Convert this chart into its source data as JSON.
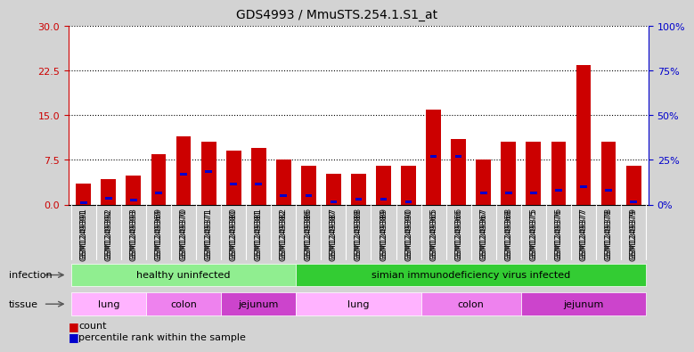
{
  "title": "GDS4993 / MmuSTS.254.1.S1_at",
  "samples": [
    "GSM1249391",
    "GSM1249392",
    "GSM1249393",
    "GSM1249369",
    "GSM1249370",
    "GSM1249371",
    "GSM1249380",
    "GSM1249381",
    "GSM1249382",
    "GSM1249386",
    "GSM1249387",
    "GSM1249388",
    "GSM1249389",
    "GSM1249390",
    "GSM1249365",
    "GSM1249366",
    "GSM1249367",
    "GSM1249368",
    "GSM1249375",
    "GSM1249376",
    "GSM1249377",
    "GSM1249378",
    "GSM1249379"
  ],
  "red_values": [
    3.5,
    4.2,
    4.8,
    8.5,
    11.5,
    10.5,
    9.0,
    9.5,
    7.5,
    6.5,
    5.2,
    5.2,
    6.5,
    6.5,
    16.0,
    11.0,
    7.5,
    10.5,
    10.5,
    10.5,
    23.5,
    10.5,
    6.5
  ],
  "blue_percentile": [
    1.0,
    3.5,
    2.5,
    6.5,
    17.0,
    18.5,
    11.5,
    11.5,
    5.0,
    5.0,
    1.5,
    3.0,
    3.0,
    1.5,
    27.0,
    27.0,
    6.5,
    6.5,
    6.5,
    8.0,
    10.0,
    8.0,
    1.5
  ],
  "ylim_left": [
    0,
    30
  ],
  "ylim_right": [
    0,
    100
  ],
  "yticks_left": [
    0,
    7.5,
    15,
    22.5,
    30
  ],
  "yticks_right": [
    0,
    25,
    50,
    75,
    100
  ],
  "infection_groups": [
    {
      "label": "healthy uninfected",
      "start": 0,
      "end": 8,
      "color": "#90EE90"
    },
    {
      "label": "simian immunodeficiency virus infected",
      "start": 9,
      "end": 22,
      "color": "#33CC33"
    }
  ],
  "tissue_colors": {
    "lung": "#FFB3FF",
    "colon": "#EE82EE",
    "jejunum": "#CC44CC"
  },
  "tissue_groups": [
    {
      "label": "lung",
      "start": 0,
      "end": 2
    },
    {
      "label": "colon",
      "start": 3,
      "end": 5
    },
    {
      "label": "jejunum",
      "start": 6,
      "end": 8
    },
    {
      "label": "lung",
      "start": 9,
      "end": 13
    },
    {
      "label": "colon",
      "start": 14,
      "end": 17
    },
    {
      "label": "jejunum",
      "start": 18,
      "end": 22
    }
  ],
  "bar_color": "#CC0000",
  "blue_color": "#0000CC",
  "background_color": "#D3D3D3",
  "plot_bg": "#FFFFFF",
  "tick_bg": "#C8C8C8",
  "axis_left_color": "#CC0000",
  "axis_right_color": "#0000CC",
  "infection_row_label": "infection",
  "tissue_row_label": "tissue",
  "legend_count_label": "count",
  "legend_pct_label": "percentile rank within the sample"
}
